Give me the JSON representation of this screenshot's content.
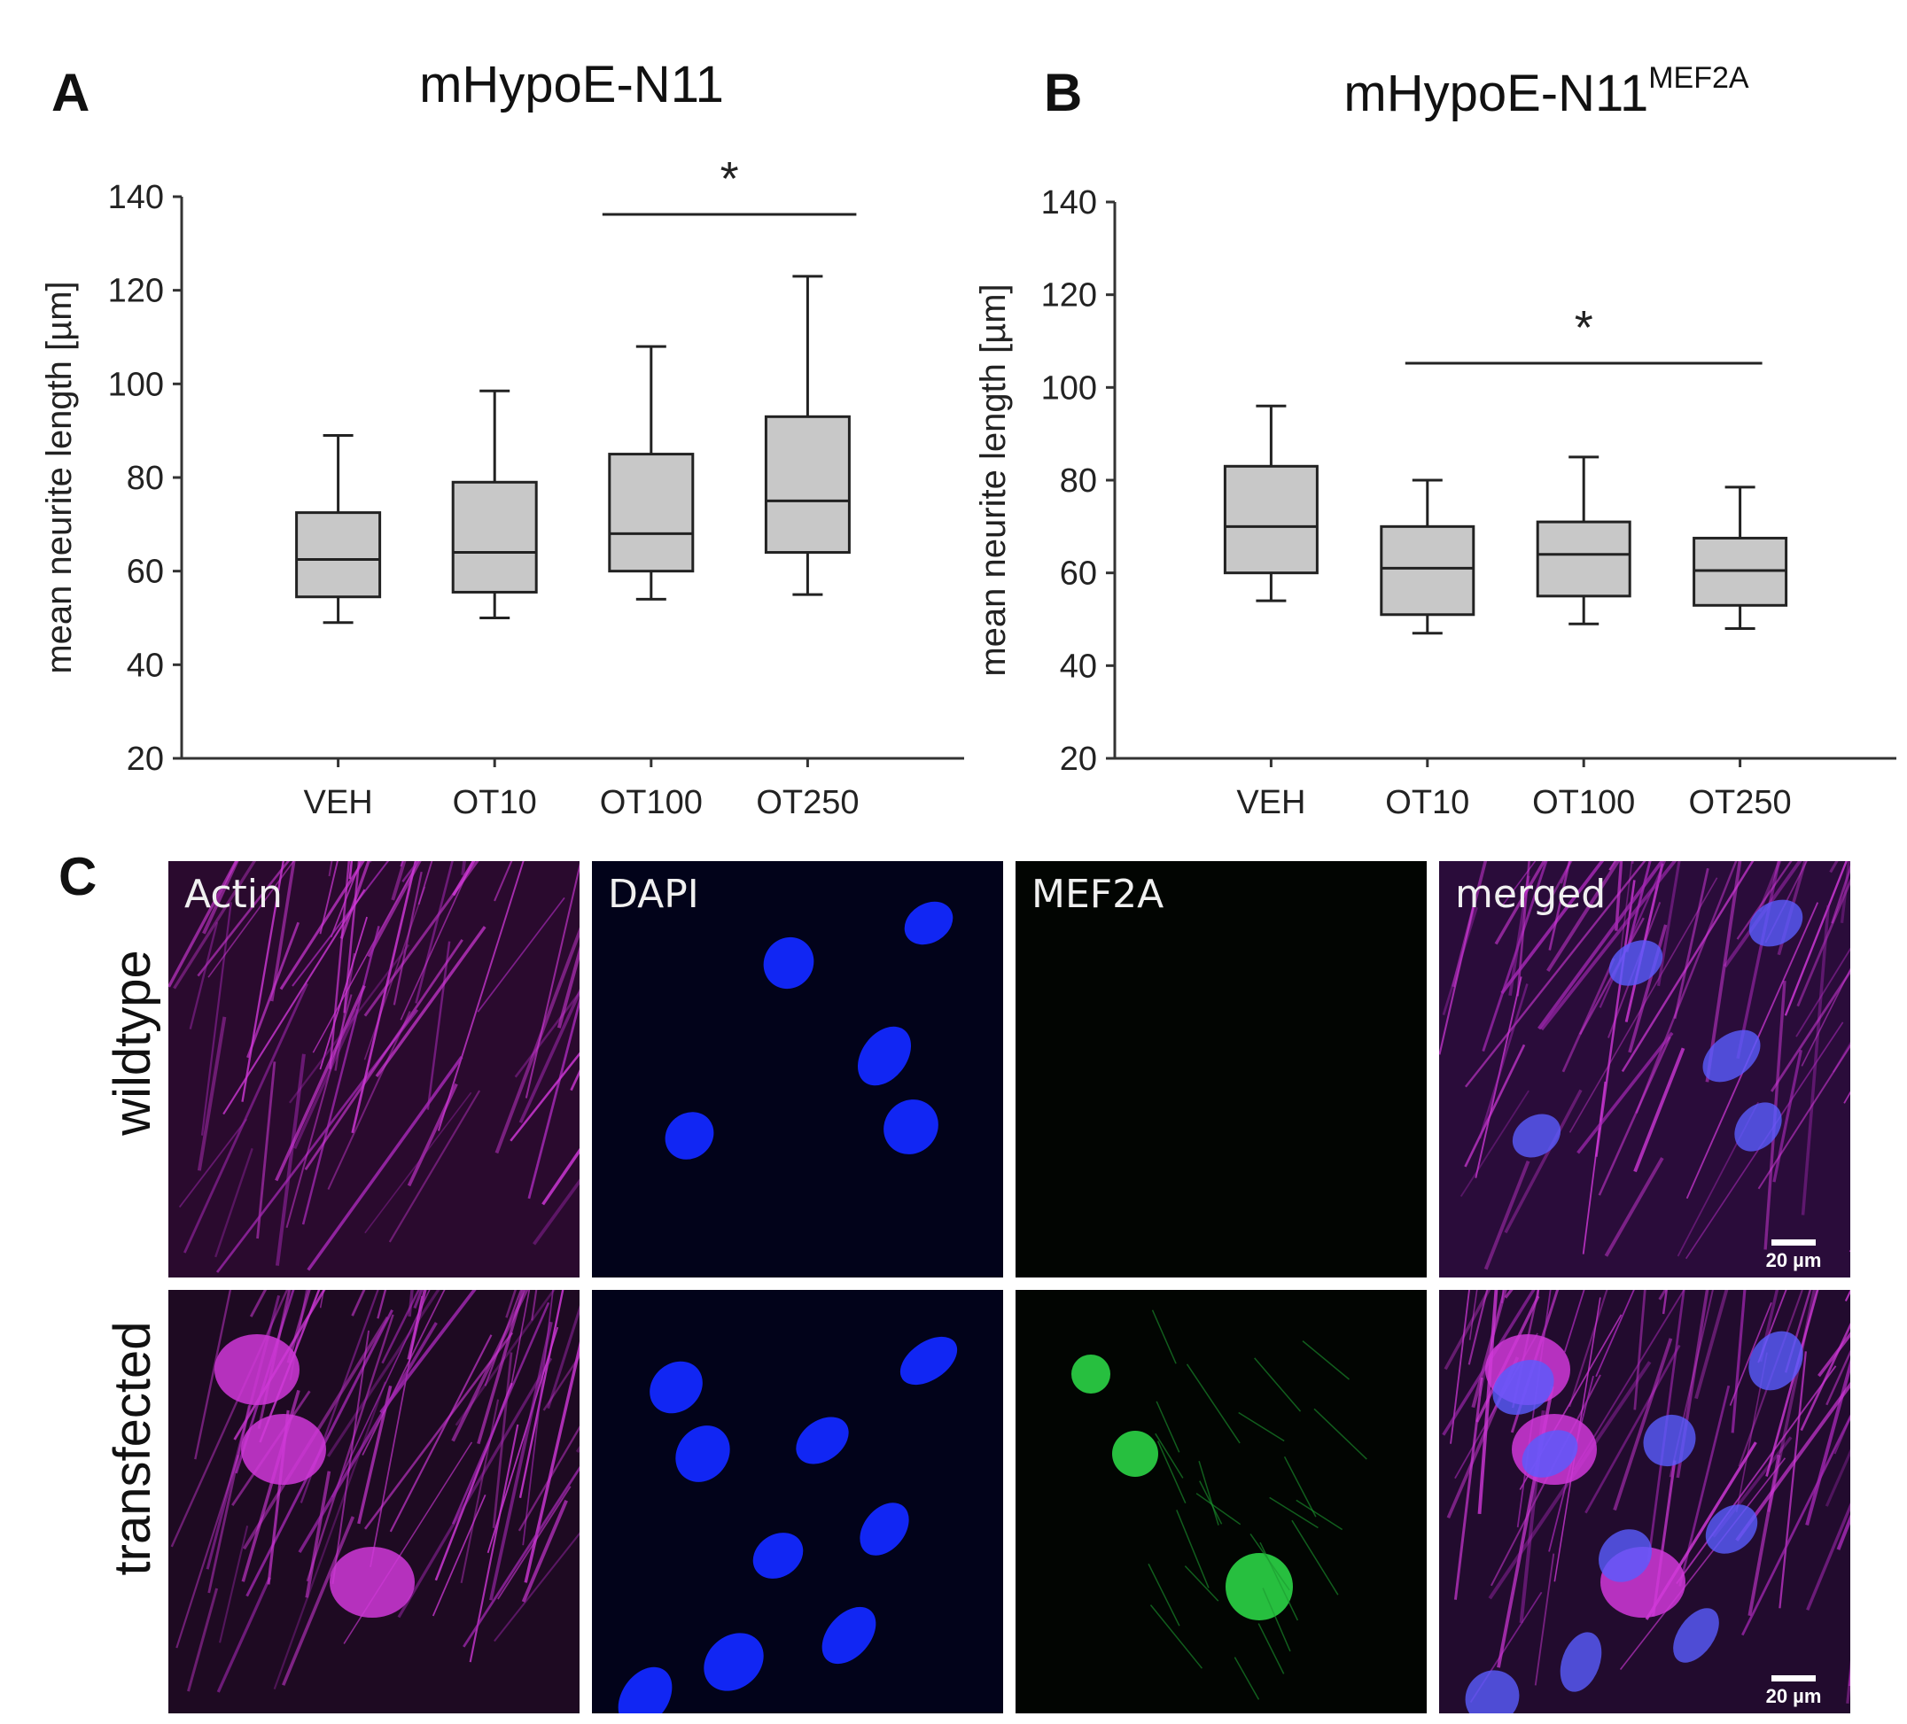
{
  "panels": {
    "a": {
      "letter": "A"
    },
    "b": {
      "letter": "B"
    },
    "c": {
      "letter": "C"
    }
  },
  "chart_data": [
    {
      "type": "box",
      "title": "mHypoE-N11",
      "ylabel": "mean neurite length [µm]",
      "ylim": [
        20,
        140
      ],
      "yticks": [
        20,
        40,
        60,
        80,
        100,
        120,
        140
      ],
      "categories": [
        "VEH",
        "OT10",
        "OT100",
        "OT250"
      ],
      "boxes": [
        {
          "min": 49,
          "q1": 54.5,
          "median": 62.5,
          "q3": 72.5,
          "max": 89
        },
        {
          "min": 50,
          "q1": 55.5,
          "median": 64,
          "q3": 79,
          "max": 98.5
        },
        {
          "min": 54,
          "q1": 60,
          "median": 68,
          "q3": 85,
          "max": 108
        },
        {
          "min": 55,
          "q1": 64,
          "median": 75,
          "q3": 93,
          "max": 123
        }
      ],
      "significance": {
        "label": "*",
        "from": "OT100",
        "to": "OT250"
      }
    },
    {
      "type": "box",
      "title": "mHypoE-N11",
      "title_superscript": "MEF2A",
      "ylabel": "mean neurite length [µm]",
      "ylim": [
        20,
        140
      ],
      "yticks": [
        20,
        40,
        60,
        80,
        100,
        120,
        140
      ],
      "categories": [
        "VEH",
        "OT10",
        "OT100",
        "OT250"
      ],
      "boxes": [
        {
          "min": 54,
          "q1": 60,
          "median": 70,
          "q3": 83,
          "max": 96
        },
        {
          "min": 47,
          "q1": 51,
          "median": 61,
          "q3": 70,
          "max": 80
        },
        {
          "min": 49,
          "q1": 55,
          "median": 64,
          "q3": 71,
          "max": 85
        },
        {
          "min": 48,
          "q1": 53,
          "median": 60.5,
          "q3": 67.5,
          "max": 78.5
        }
      ],
      "significance": {
        "label": "*",
        "from": "OT10",
        "to": "OT250"
      }
    }
  ],
  "microscopy": {
    "rows": [
      {
        "label": "wildtype"
      },
      {
        "label": "transfected"
      }
    ],
    "channels": [
      {
        "label": "Actin",
        "color": "#c030c8"
      },
      {
        "label": "DAPI",
        "color": "#1a2cff"
      },
      {
        "label": "MEF2A",
        "color": "#22d040"
      },
      {
        "label": "merged",
        "color": "#b040d8"
      }
    ],
    "scalebar": "20 µm"
  }
}
